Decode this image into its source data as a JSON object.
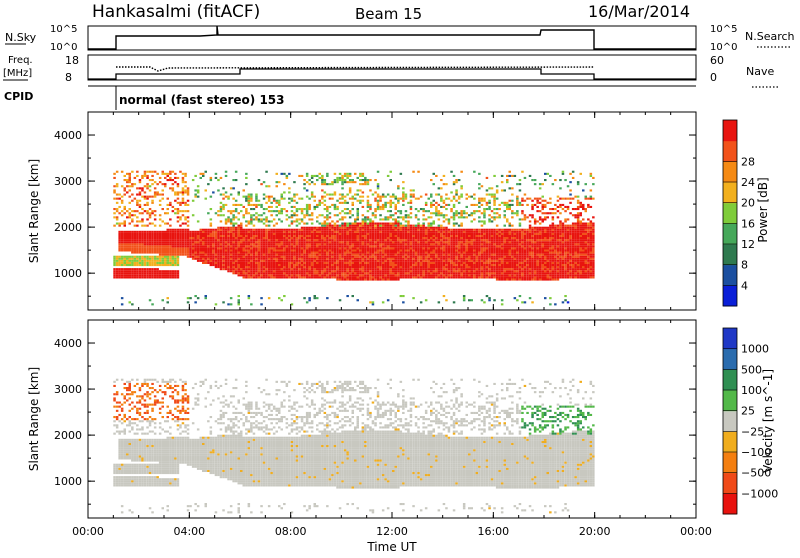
{
  "header": {
    "station": "Hankasalmi (fitACF)",
    "beam": "Beam 15",
    "date": "16/Mar/2014"
  },
  "noise_panel": {
    "left_label": "N.Sky",
    "left_ticks": [
      "10^5",
      "10^0"
    ],
    "right_label": "N.Search",
    "right_ticks": [
      "10^5",
      "10^0"
    ]
  },
  "freq_panel": {
    "left_label_1": "Freq.",
    "left_label_2": "[MHz]",
    "left_ticks": [
      "18",
      "8"
    ],
    "right_label": "Nave",
    "right_ticks": [
      "60",
      "0"
    ]
  },
  "cpid": {
    "label": "CPID",
    "mode": "normal (fast stereo) 153"
  },
  "colors": {
    "power": [
      "#0a1fd8",
      "#1b4fa0",
      "#2f7a4f",
      "#46a85a",
      "#7fcc3a",
      "#f2b01e",
      "#f58a14",
      "#f2521a",
      "#e8140f"
    ],
    "velocity": [
      "#1f38c6",
      "#2a6cae",
      "#2f8f52",
      "#52b848",
      "#c8c8c0",
      "#f0ad1e",
      "#f47f10",
      "#f04a18",
      "#e8120e"
    ]
  },
  "chart_data": [
    {
      "type": "heatmap",
      "name": "power",
      "ylabel": "Slant Range [km]",
      "yticks": [
        "1000",
        "2000",
        "3000",
        "4000"
      ],
      "ylim": [
        200,
        4500
      ],
      "xlim": [
        0,
        24
      ],
      "colorbar": {
        "label": "Power [dB]",
        "ticks": [
          "4",
          "8",
          "12",
          "16",
          "20",
          "24",
          "28"
        ]
      }
    },
    {
      "type": "heatmap",
      "name": "velocity",
      "ylabel": "Slant Range [km]",
      "yticks": [
        "1000",
        "2000",
        "3000",
        "4000"
      ],
      "ylim": [
        200,
        4500
      ],
      "xlim": [
        0,
        24
      ],
      "colorbar": {
        "label": "Velocity [m s^-1]",
        "ticks": [
          "1000",
          "500",
          "100",
          "25",
          "−25",
          "−100",
          "−500",
          "−1000"
        ]
      }
    }
  ],
  "xaxis": {
    "title": "Time UT",
    "ticks": [
      "00:00",
      "04:00",
      "08:00",
      "12:00",
      "16:00",
      "20:00",
      "00:00"
    ]
  }
}
